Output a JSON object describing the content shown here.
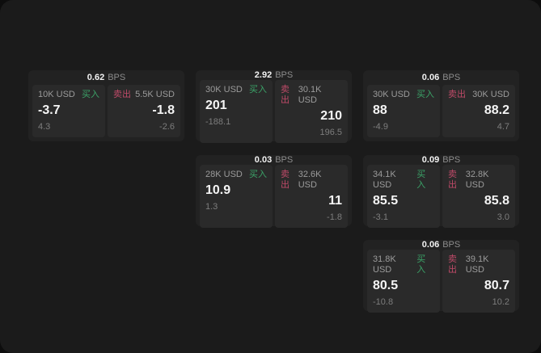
{
  "labels": {
    "bps_unit": "BPS",
    "buy": "买入",
    "sell": "卖出"
  },
  "colors": {
    "buy_green": "#3ba368",
    "sell_red": "#bf4a68"
  },
  "cards": [
    {
      "bps": "0.62",
      "buy": {
        "amount": "10K USD",
        "price": "-3.7",
        "delta": "4.3"
      },
      "sell": {
        "amount": "5.5K USD",
        "price": "-1.8",
        "delta": "-2.6"
      }
    },
    {
      "bps": "2.92",
      "buy": {
        "amount": "30K USD",
        "price": "201",
        "delta": "-188.1"
      },
      "sell": {
        "amount": "30.1K USD",
        "price": "210",
        "delta": "196.5"
      }
    },
    {
      "bps": "0.06",
      "buy": {
        "amount": "30K USD",
        "price": "88",
        "delta": "-4.9"
      },
      "sell": {
        "amount": "30K USD",
        "price": "88.2",
        "delta": "4.7"
      }
    },
    {
      "bps": "0.03",
      "buy": {
        "amount": "28K USD",
        "price": "10.9",
        "delta": "1.3"
      },
      "sell": {
        "amount": "32.6K USD",
        "price": "11",
        "delta": "-1.8"
      }
    },
    {
      "bps": "0.09",
      "buy": {
        "amount": "34.1K USD",
        "price": "85.5",
        "delta": "-3.1"
      },
      "sell": {
        "amount": "32.8K USD",
        "price": "85.8",
        "delta": "3.0"
      }
    },
    {
      "bps": "0.06",
      "buy": {
        "amount": "31.8K USD",
        "price": "80.5",
        "delta": "-10.8"
      },
      "sell": {
        "amount": "39.1K USD",
        "price": "80.7",
        "delta": "10.2"
      }
    }
  ]
}
